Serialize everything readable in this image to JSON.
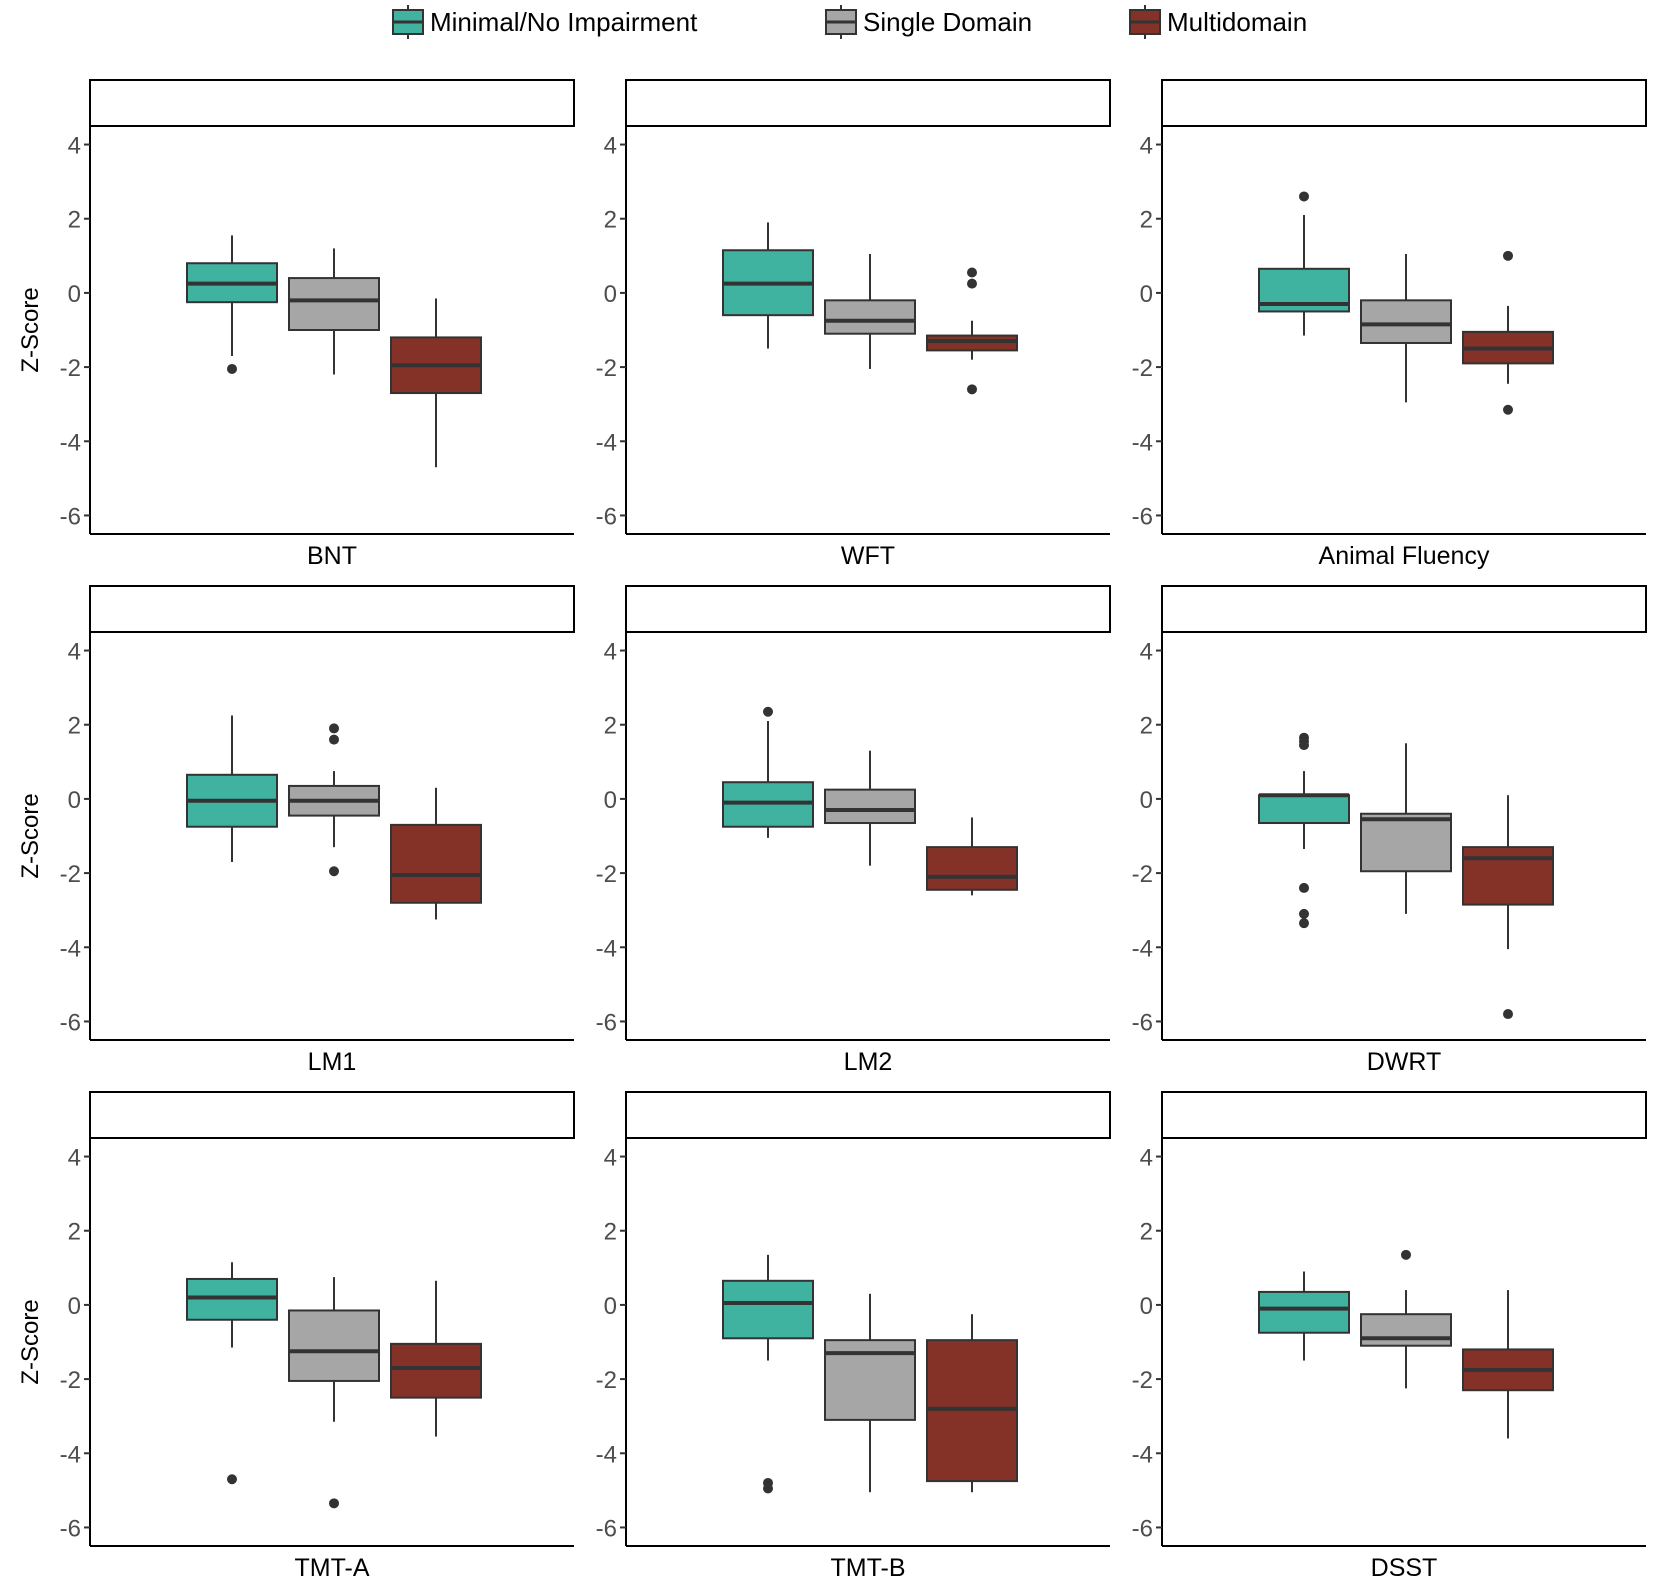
{
  "chart_data": {
    "type": "boxplot",
    "ylabel": "Z-Score",
    "ylim": [
      -6.5,
      4.5
    ],
    "yticks": [
      4,
      2,
      0,
      -2,
      -4,
      -6
    ],
    "legend": {
      "position": "top",
      "items": [
        {
          "label": "Minimal/No Impairment",
          "color": "#40b2a0"
        },
        {
          "label": "Single Domain",
          "color": "#a6a6a6"
        },
        {
          "label": "Multidomain",
          "color": "#843228"
        }
      ]
    },
    "panels": [
      {
        "xlabel": "BNT",
        "boxes": [
          {
            "group": "Minimal/No Impairment",
            "min": -1.7,
            "q1": -0.25,
            "median": 0.25,
            "q3": 0.8,
            "max": 1.55,
            "outliers": [
              -2.05
            ]
          },
          {
            "group": "Single Domain",
            "min": -2.2,
            "q1": -1.0,
            "median": -0.2,
            "q3": 0.4,
            "max": 1.2,
            "outliers": []
          },
          {
            "group": "Multidomain",
            "min": -4.7,
            "q1": -2.7,
            "median": -1.95,
            "q3": -1.2,
            "max": -0.15,
            "outliers": []
          }
        ]
      },
      {
        "xlabel": "WFT",
        "boxes": [
          {
            "group": "Minimal/No Impairment",
            "min": -1.5,
            "q1": -0.6,
            "median": 0.25,
            "q3": 1.15,
            "max": 1.9,
            "outliers": []
          },
          {
            "group": "Single Domain",
            "min": -2.05,
            "q1": -1.1,
            "median": -0.75,
            "q3": -0.2,
            "max": 1.05,
            "outliers": []
          },
          {
            "group": "Multidomain",
            "min": -1.8,
            "q1": -1.55,
            "median": -1.3,
            "q3": -1.15,
            "max": -0.75,
            "outliers": [
              0.55,
              0.25,
              -2.6
            ]
          }
        ]
      },
      {
        "xlabel": "Animal Fluency",
        "boxes": [
          {
            "group": "Minimal/No Impairment",
            "min": -1.15,
            "q1": -0.5,
            "median": -0.3,
            "q3": 0.65,
            "max": 2.1,
            "outliers": [
              2.6
            ]
          },
          {
            "group": "Single Domain",
            "min": -2.95,
            "q1": -1.35,
            "median": -0.85,
            "q3": -0.2,
            "max": 1.05,
            "outliers": []
          },
          {
            "group": "Multidomain",
            "min": -2.45,
            "q1": -1.9,
            "median": -1.5,
            "q3": -1.05,
            "max": -0.35,
            "outliers": [
              1.0,
              -3.15
            ]
          }
        ]
      },
      {
        "xlabel": "LM1",
        "boxes": [
          {
            "group": "Minimal/No Impairment",
            "min": -1.7,
            "q1": -0.75,
            "median": -0.05,
            "q3": 0.65,
            "max": 2.25,
            "outliers": []
          },
          {
            "group": "Single Domain",
            "min": -1.3,
            "q1": -0.45,
            "median": -0.05,
            "q3": 0.35,
            "max": 0.75,
            "outliers": [
              1.9,
              1.6,
              -1.95
            ]
          },
          {
            "group": "Multidomain",
            "min": -3.25,
            "q1": -2.8,
            "median": -2.05,
            "q3": -0.7,
            "max": 0.3,
            "outliers": []
          }
        ]
      },
      {
        "xlabel": "LM2",
        "boxes": [
          {
            "group": "Minimal/No Impairment",
            "min": -1.05,
            "q1": -0.75,
            "median": -0.1,
            "q3": 0.45,
            "max": 2.1,
            "outliers": [
              2.35
            ]
          },
          {
            "group": "Single Domain",
            "min": -1.8,
            "q1": -0.65,
            "median": -0.3,
            "q3": 0.25,
            "max": 1.3,
            "outliers": []
          },
          {
            "group": "Multidomain",
            "min": -2.6,
            "q1": -2.45,
            "median": -2.1,
            "q3": -1.3,
            "max": -0.5,
            "outliers": []
          }
        ]
      },
      {
        "xlabel": "DWRT",
        "boxes": [
          {
            "group": "Minimal/No Impairment",
            "min": -1.35,
            "q1": -0.65,
            "median": 0.1,
            "q3": 0.1,
            "max": 0.75,
            "outliers": [
              1.65,
              1.55,
              1.45,
              -2.4,
              -3.1,
              -3.35
            ]
          },
          {
            "group": "Single Domain",
            "min": -3.1,
            "q1": -1.95,
            "median": -0.55,
            "q3": -0.4,
            "max": 1.5,
            "outliers": []
          },
          {
            "group": "Multidomain",
            "min": -4.05,
            "q1": -2.85,
            "median": -1.6,
            "q3": -1.3,
            "max": 0.1,
            "outliers": [
              -5.8
            ]
          }
        ]
      },
      {
        "xlabel": "TMT-A",
        "boxes": [
          {
            "group": "Minimal/No Impairment",
            "min": -1.15,
            "q1": -0.4,
            "median": 0.2,
            "q3": 0.7,
            "max": 1.15,
            "outliers": [
              -4.7
            ]
          },
          {
            "group": "Single Domain",
            "min": -3.15,
            "q1": -2.05,
            "median": -1.25,
            "q3": -0.15,
            "max": 0.75,
            "outliers": [
              -5.35
            ]
          },
          {
            "group": "Multidomain",
            "min": -3.55,
            "q1": -2.5,
            "median": -1.7,
            "q3": -1.05,
            "max": 0.65,
            "outliers": []
          }
        ]
      },
      {
        "xlabel": "TMT-B",
        "boxes": [
          {
            "group": "Minimal/No Impairment",
            "min": -1.5,
            "q1": -0.9,
            "median": 0.05,
            "q3": 0.65,
            "max": 1.35,
            "outliers": [
              -4.8,
              -4.95
            ]
          },
          {
            "group": "Single Domain",
            "min": -5.05,
            "q1": -3.1,
            "median": -1.3,
            "q3": -0.95,
            "max": 0.3,
            "outliers": []
          },
          {
            "group": "Multidomain",
            "min": -5.05,
            "q1": -4.75,
            "median": -2.8,
            "q3": -0.95,
            "max": -0.25,
            "outliers": []
          }
        ]
      },
      {
        "xlabel": "DSST",
        "boxes": [
          {
            "group": "Minimal/No Impairment",
            "min": -1.5,
            "q1": -0.75,
            "median": -0.1,
            "q3": 0.35,
            "max": 0.9,
            "outliers": []
          },
          {
            "group": "Single Domain",
            "min": -2.25,
            "q1": -1.1,
            "median": -0.9,
            "q3": -0.25,
            "max": 0.4,
            "outliers": [
              1.35
            ]
          },
          {
            "group": "Multidomain",
            "min": -3.6,
            "q1": -2.3,
            "median": -1.75,
            "q3": -1.2,
            "max": 0.4,
            "outliers": []
          }
        ]
      }
    ]
  }
}
